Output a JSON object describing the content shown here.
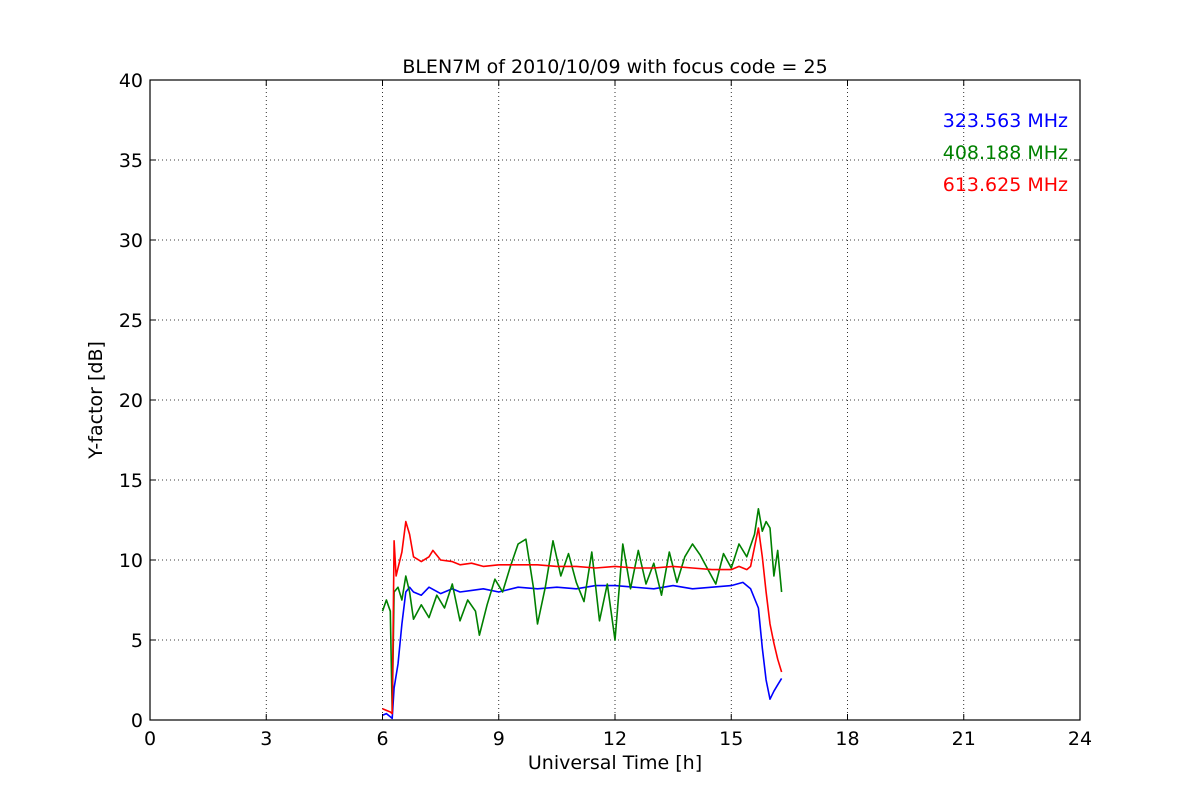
{
  "chart_data": {
    "type": "line",
    "title": "BLEN7M of 2010/10/09 with focus code = 25",
    "xlabel": "Universal Time [h]",
    "ylabel": "Y-factor [dB]",
    "xlim": [
      0,
      24
    ],
    "ylim": [
      0,
      40
    ],
    "xticks": [
      0,
      3,
      6,
      9,
      12,
      15,
      18,
      21,
      24
    ],
    "xtick_labels": [
      "0",
      "3",
      "6",
      "9",
      "12",
      "15",
      "18",
      "21",
      "24"
    ],
    "yticks": [
      0,
      5,
      10,
      15,
      20,
      25,
      30,
      35,
      40
    ],
    "ytick_labels": [
      "0",
      "5",
      "10",
      "15",
      "20",
      "25",
      "30",
      "35",
      "40"
    ],
    "grid": true,
    "legend_position": "top-right",
    "series": [
      {
        "name": "323.563 MHz",
        "color": "#0000ff",
        "x": [
          6.0,
          6.1,
          6.2,
          6.25,
          6.3,
          6.4,
          6.5,
          6.6,
          6.7,
          6.8,
          7.0,
          7.2,
          7.5,
          7.8,
          8.0,
          8.3,
          8.6,
          9.0,
          9.5,
          10.0,
          10.5,
          11.0,
          11.5,
          12.0,
          12.5,
          13.0,
          13.5,
          14.0,
          14.5,
          15.0,
          15.3,
          15.5,
          15.7,
          15.8,
          15.9,
          16.0,
          16.1,
          16.2,
          16.3
        ],
        "y": [
          0.3,
          0.4,
          0.2,
          0.1,
          2.0,
          3.5,
          6.0,
          8.0,
          8.3,
          8.0,
          7.8,
          8.3,
          7.9,
          8.2,
          8.0,
          8.1,
          8.2,
          8.0,
          8.3,
          8.2,
          8.3,
          8.2,
          8.4,
          8.4,
          8.3,
          8.2,
          8.4,
          8.2,
          8.3,
          8.4,
          8.6,
          8.2,
          7.0,
          4.5,
          2.5,
          1.3,
          1.8,
          2.2,
          2.6
        ]
      },
      {
        "name": "408.188 MHz",
        "color": "#008000",
        "x": [
          6.0,
          6.1,
          6.2,
          6.25,
          6.3,
          6.4,
          6.5,
          6.6,
          6.7,
          6.8,
          7.0,
          7.2,
          7.4,
          7.6,
          7.8,
          8.0,
          8.2,
          8.4,
          8.5,
          8.7,
          8.9,
          9.1,
          9.3,
          9.5,
          9.7,
          9.9,
          10.0,
          10.2,
          10.4,
          10.6,
          10.8,
          11.0,
          11.2,
          11.4,
          11.6,
          11.8,
          12.0,
          12.2,
          12.4,
          12.6,
          12.8,
          13.0,
          13.2,
          13.4,
          13.6,
          13.8,
          14.0,
          14.2,
          14.4,
          14.6,
          14.8,
          15.0,
          15.2,
          15.4,
          15.6,
          15.7,
          15.8,
          15.9,
          16.0,
          16.1,
          16.2,
          16.3
        ],
        "y": [
          6.8,
          7.5,
          6.8,
          0.5,
          8.0,
          8.3,
          7.5,
          9.0,
          8.0,
          6.3,
          7.2,
          6.4,
          7.8,
          7.0,
          8.5,
          6.2,
          7.5,
          6.8,
          5.3,
          7.2,
          8.8,
          8.0,
          9.6,
          11.0,
          11.3,
          8.2,
          6.0,
          8.3,
          11.2,
          9.0,
          10.4,
          8.6,
          7.4,
          10.5,
          6.2,
          8.5,
          5.0,
          11.0,
          8.2,
          10.6,
          8.5,
          9.8,
          7.8,
          10.5,
          8.6,
          10.2,
          11.0,
          10.3,
          9.4,
          8.5,
          10.4,
          9.5,
          11.0,
          10.2,
          11.6,
          13.2,
          11.8,
          12.4,
          12.0,
          9.0,
          10.6,
          8.0
        ]
      },
      {
        "name": "613.625 MHz",
        "color": "#ff0000",
        "x": [
          6.0,
          6.1,
          6.2,
          6.25,
          6.3,
          6.35,
          6.4,
          6.5,
          6.6,
          6.7,
          6.8,
          7.0,
          7.2,
          7.3,
          7.5,
          7.8,
          8.0,
          8.3,
          8.6,
          9.0,
          9.5,
          10.0,
          10.5,
          11.0,
          11.5,
          12.0,
          12.5,
          13.0,
          13.5,
          14.0,
          14.5,
          15.0,
          15.2,
          15.4,
          15.5,
          15.6,
          15.7,
          15.8,
          15.9,
          16.0,
          16.1,
          16.2,
          16.3
        ],
        "y": [
          0.7,
          0.6,
          0.5,
          0.4,
          11.2,
          9.0,
          9.5,
          10.5,
          12.4,
          11.6,
          10.2,
          9.9,
          10.2,
          10.6,
          10.0,
          9.9,
          9.7,
          9.8,
          9.6,
          9.7,
          9.7,
          9.7,
          9.6,
          9.6,
          9.5,
          9.6,
          9.5,
          9.5,
          9.6,
          9.5,
          9.4,
          9.4,
          9.6,
          9.4,
          9.6,
          10.8,
          12.0,
          10.2,
          8.0,
          6.0,
          4.8,
          3.8,
          3.0
        ]
      }
    ]
  }
}
